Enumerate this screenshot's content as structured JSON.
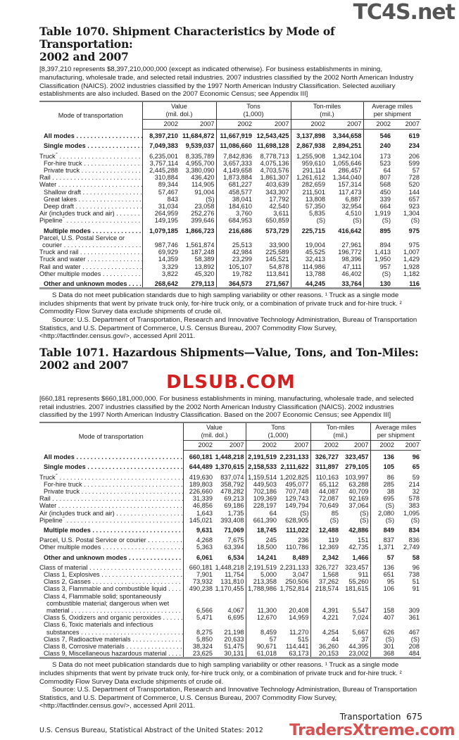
{
  "watermarks": {
    "top": "TC4S.net",
    "middle": "DLSUB.COM",
    "bottom": "TradersXtreme.com"
  },
  "table1070": {
    "title_line1": "Table 1070. Shipment Characteristics by Mode of Transportation:",
    "title_line2": "2002 and 2007",
    "intro": "[8,397,210 represents $8,397,210,000,000 (except as indicated otherwise). For business establishments in mining, manufacturing, wholesale trade, and selected retail industries. 2007 industries classified by the 2002 North American Industry Classification (NAICS). 2002 industries classified by the 1997 North American Industry Classification. Selected auxiliary establishments are also included. Based on the 2007 Economic Census; see Appendix III]",
    "stub_header": "Mode of transportation",
    "groups": [
      {
        "l1": "Value",
        "l2": "(mil. dol.)"
      },
      {
        "l1": "Tons",
        "l2": "(1,000)"
      },
      {
        "l1": "Ton-miles",
        "l2": "(mil.)"
      },
      {
        "l1": "Average miles",
        "l2": "per shipment"
      }
    ],
    "years": [
      "2002",
      "2007",
      "2002",
      "2007",
      "2002",
      "2007",
      "2002",
      "2007"
    ],
    "rows": [
      {
        "label": [
          "All modes"
        ],
        "indent": 1,
        "bold": true,
        "v": [
          "8,397,210",
          "11,684,872",
          "11,667,919",
          "12,543,425",
          "3,137,898",
          "3,344,658",
          "546",
          "619"
        ]
      },
      {
        "label": [
          "Single modes"
        ],
        "indent": 1,
        "bold": true,
        "v": [
          "7,049,383",
          "9,539,037",
          "11,086,660",
          "11,698,128",
          "2,867,938",
          "2,894,251",
          "240",
          "234"
        ]
      },
      {
        "label": [
          "Truck"
        ],
        "sup": "1",
        "indent": 0,
        "gap": true,
        "v": [
          "6,235,001",
          "8,335,789",
          "7,842,836",
          "8,778,713",
          "1,255,908",
          "1,342,104",
          "173",
          "206"
        ]
      },
      {
        "label": [
          "For-hire truck"
        ],
        "indent": 1,
        "v": [
          "3,757,114",
          "4,955,700",
          "3,657,333",
          "4,075,136",
          "959,610",
          "1,055,646",
          "523",
          "599"
        ]
      },
      {
        "label": [
          "Private truck"
        ],
        "indent": 1,
        "v": [
          "2,445,288",
          "3,380,090",
          "4,149,658",
          "4,703,576",
          "291,114",
          "286,457",
          "64",
          "57"
        ]
      },
      {
        "label": [
          "Rail"
        ],
        "indent": 0,
        "v": [
          "310,884",
          "436,420",
          "1,873,884",
          "1,861,307",
          "1,261,612",
          "1,344,040",
          "807",
          "728"
        ]
      },
      {
        "label": [
          "Water"
        ],
        "indent": 0,
        "v": [
          "89,344",
          "114,905",
          "681,227",
          "403,639",
          "282,659",
          "157,314",
          "568",
          "520"
        ]
      },
      {
        "label": [
          "Shallow draft"
        ],
        "indent": 1,
        "v": [
          "57,467",
          "91,004",
          "458,577",
          "343,307",
          "211,501",
          "117,473",
          "450",
          "144"
        ]
      },
      {
        "label": [
          "Great lakes"
        ],
        "indent": 1,
        "v": [
          "843",
          "(S)",
          "38,041",
          "17,792",
          "13,808",
          "6,887",
          "339",
          "657"
        ]
      },
      {
        "label": [
          "Deep draft"
        ],
        "indent": 1,
        "v": [
          "31,034",
          "23,058",
          "184,610",
          "42,540",
          "57,350",
          "32,954",
          "664",
          "923"
        ]
      },
      {
        "label": [
          "Air (includes truck and air)"
        ],
        "indent": 0,
        "v": [
          "264,959",
          "252,276",
          "3,760",
          "3,611",
          "5,835",
          "4,510",
          "1,919",
          "1,304"
        ]
      },
      {
        "label": [
          "Pipeline"
        ],
        "sup": "2",
        "indent": 0,
        "v": [
          "149,195",
          "399,646",
          "684,953",
          "650,859",
          "(S)",
          "(S)",
          "(S)",
          "(S)"
        ]
      },
      {
        "label": [
          "Multiple modes"
        ],
        "indent": 1,
        "bold": true,
        "v": [
          "1,079,185",
          "1,866,723",
          "216,686",
          "573,729",
          "225,715",
          "416,642",
          "895",
          "975"
        ]
      },
      {
        "label": [
          "Parcel, U.S. Postal Service or",
          "courier"
        ],
        "indent": 0,
        "gap": true,
        "v": [
          "987,746",
          "1,561,874",
          "25,513",
          "33,900",
          "19,004",
          "27,961",
          "894",
          "975"
        ]
      },
      {
        "label": [
          "Truck and rail"
        ],
        "indent": 0,
        "v": [
          "69,929",
          "187,248",
          "42,984",
          "225,589",
          "45,525",
          "196,772",
          "1,413",
          "1,007"
        ]
      },
      {
        "label": [
          "Truck and water"
        ],
        "indent": 0,
        "v": [
          "14,359",
          "58,389",
          "23,299",
          "145,521",
          "32,413",
          "98,396",
          "1,950",
          "1,429"
        ]
      },
      {
        "label": [
          "Rail and water"
        ],
        "indent": 0,
        "v": [
          "3,329",
          "13,892",
          "105,107",
          "54,878",
          "114,986",
          "47,111",
          "957",
          "1,928"
        ]
      },
      {
        "label": [
          "Other multiple modes"
        ],
        "indent": 0,
        "v": [
          "3,822",
          "45,320",
          "19,782",
          "113,841",
          "13,788",
          "46,402",
          "(S)",
          "1,182"
        ]
      },
      {
        "label": [
          "Other and unknown modes"
        ],
        "indent": 1,
        "bold": true,
        "v": [
          "268,642",
          "279,113",
          "364,573",
          "271,567",
          "44,245",
          "33,764",
          "130",
          "116"
        ]
      }
    ],
    "footnote": "S Data do not meet publication standards due to high sampling variability or other reasons. ¹ Truck as a single mode includes shipments that went by private truck only, for-hire truck only, or a combination of private truck and for-hire truck. ² Commodity Flow Survey data exclude shipments of crude oil.",
    "source": "Source: U.S. Department of Transportation, Research and Innovative Technology Administration, Bureau of Transportation Statistics, and U.S. Department of Commerce, U.S. Census Bureau, 2007 Commodity Flow Survey, <http://factfinder.census.gov/>, accessed April 2011."
  },
  "table1071": {
    "title": "Table 1071. Hazardous Shipments—Value, Tons, and Ton-Miles: 2002 and 2007",
    "intro": "[660,181 represents $660,181,000,000. For business establishments in mining, manufacturing, wholesale trade, and selected retail industries. 2007 industries classified by the 2002 North American Industry Classification (NAICS). 2002 industries classified by the 1997 North American Industry Classification. Based on the 2007 Economic Census; see Appendix III]",
    "stub_header": "Mode of transportation",
    "groups": [
      {
        "l1": "Value",
        "l2": "(mil. dol.)"
      },
      {
        "l1": "Tons",
        "l2": "(1,000)"
      },
      {
        "l1": "Ton-miles",
        "l2": "(mil.)"
      },
      {
        "l1": "Average miles",
        "l2": "per shipment"
      }
    ],
    "years": [
      "2002",
      "2007",
      "2002",
      "2007",
      "2002",
      "2007",
      "2002",
      "2007"
    ],
    "rows": [
      {
        "label": [
          "All modes"
        ],
        "indent": 1,
        "bold": true,
        "v": [
          "660,181",
          "1,448,218",
          "2,191,519",
          "2,231,133",
          "326,727",
          "323,457",
          "136",
          "96"
        ]
      },
      {
        "label": [
          "Single modes"
        ],
        "indent": 1,
        "bold": true,
        "v": [
          "644,489",
          "1,370,615",
          "2,158,533",
          "2,111,622",
          "311,897",
          "279,105",
          "105",
          "65"
        ]
      },
      {
        "label": [
          "Truck"
        ],
        "sup": "1",
        "indent": 0,
        "gap": true,
        "v": [
          "419,630",
          "837,074",
          "1,159,514",
          "1,202,825",
          "110,163",
          "103,997",
          "86",
          "59"
        ]
      },
      {
        "label": [
          "For-hire truck"
        ],
        "indent": 1,
        "v": [
          "189,803",
          "358,792",
          "449,503",
          "495,077",
          "65,112",
          "63,288",
          "285",
          "214"
        ]
      },
      {
        "label": [
          "Private truck"
        ],
        "indent": 1,
        "v": [
          "226,660",
          "478,282",
          "702,186",
          "707,748",
          "44,087",
          "40,709",
          "38",
          "32"
        ]
      },
      {
        "label": [
          "Rail"
        ],
        "indent": 0,
        "v": [
          "31,339",
          "69,213",
          "109,369",
          "129,743",
          "72,087",
          "92,169",
          "695",
          "578"
        ]
      },
      {
        "label": [
          "Water"
        ],
        "indent": 0,
        "v": [
          "46,856",
          "69,186",
          "228,197",
          "149,794",
          "70,649",
          "37,064",
          "(S)",
          "383"
        ]
      },
      {
        "label": [
          "Air (includes truck and air)"
        ],
        "indent": 0,
        "v": [
          "1,643",
          "1,735",
          "64",
          "(S)",
          "85",
          "(S)",
          "2,080",
          "1,095"
        ]
      },
      {
        "label": [
          "Pipeline"
        ],
        "sup": "2",
        "indent": 0,
        "v": [
          "145,021",
          "393,408",
          "661,390",
          "628,905",
          "(S)",
          "(S)",
          "(S)",
          "(S)"
        ]
      },
      {
        "label": [
          "Multiple modes"
        ],
        "indent": 1,
        "bold": true,
        "v": [
          "9,631",
          "71,069",
          "18,745",
          "111,022",
          "12,488",
          "42,886",
          "849",
          "834"
        ]
      },
      {
        "label": [
          "Parcel, U.S. Postal Service or courier"
        ],
        "indent": 0,
        "gap": true,
        "v": [
          "4,268",
          "7,675",
          "245",
          "236",
          "119",
          "151",
          "837",
          "836"
        ]
      },
      {
        "label": [
          "Other multiple modes"
        ],
        "indent": 0,
        "v": [
          "5,363",
          "63,394",
          "18,500",
          "110,786",
          "12,369",
          "42,735",
          "1,371",
          "2,749"
        ]
      },
      {
        "label": [
          "Other and unknown modes"
        ],
        "indent": 1,
        "bold": true,
        "v": [
          "6,061",
          "6,534",
          "14,241",
          "8,489",
          "2,342",
          "1,466",
          "57",
          "58"
        ]
      },
      {
        "label": [
          "Class of material"
        ],
        "indent": 0,
        "gap": true,
        "v": [
          "660,181",
          "1,448,218",
          "2,191,519",
          "2,231,133",
          "326,727",
          "323,457",
          "136",
          "96"
        ]
      },
      {
        "label": [
          "Class 1, Explosives"
        ],
        "indent": 1,
        "v": [
          "7,901",
          "11,754",
          "5,000",
          "3,047",
          "1,568",
          "911",
          "651",
          "738"
        ]
      },
      {
        "label": [
          "Class 2, Gasses"
        ],
        "indent": 1,
        "v": [
          "73,932",
          "131,810",
          "213,358",
          "250,506",
          "37,262",
          "55,260",
          "95",
          "51"
        ]
      },
      {
        "label": [
          "Class 3, Flammable and combustible liquid"
        ],
        "indent": 1,
        "v": [
          "490,238",
          "1,170,455",
          "1,788,986",
          "1,752,814",
          "218,574",
          "181,615",
          "106",
          "91"
        ]
      },
      {
        "label": [
          "Class 4, Flammable solid; spontaneously",
          "combustible material; dangerous when wet",
          "material"
        ],
        "indent": 1,
        "v": [
          "6,566",
          "4,067",
          "11,300",
          "20,408",
          "4,391",
          "5,547",
          "158",
          "309"
        ]
      },
      {
        "label": [
          "Class 5, Oxidizers and organic peroxides"
        ],
        "indent": 1,
        "v": [
          "5,471",
          "6,695",
          "12,670",
          "14,959",
          "4,221",
          "7,024",
          "407",
          "361"
        ]
      },
      {
        "label": [
          "Class 6, Toxic materials and infectious",
          "substances"
        ],
        "indent": 1,
        "v": [
          "8,275",
          "21,198",
          "8,459",
          "11,270",
          "4,254",
          "5,667",
          "626",
          "467"
        ]
      },
      {
        "label": [
          "Class 7, Radioactive materials"
        ],
        "indent": 1,
        "v": [
          "5,850",
          "20,633",
          "57",
          "515",
          "44",
          "37",
          "(S)",
          "(S)"
        ]
      },
      {
        "label": [
          "Class 8, Corrosive materials"
        ],
        "indent": 1,
        "v": [
          "38,324",
          "51,475",
          "90,671",
          "114,441",
          "36,260",
          "44,395",
          "301",
          "208"
        ]
      },
      {
        "label": [
          "Class 9, Miscellaneous hazardous material"
        ],
        "indent": 1,
        "v": [
          "23,625",
          "30,131",
          "61,018",
          "63,173",
          "20,153",
          "23,002",
          "368",
          "484"
        ]
      }
    ],
    "footnote": "S Data do not meet publication standards due to high sampling variability or other reasons. ¹ Truck as a single mode includes shipments that went by private truck only, for-hire truck only, or a combination of private truck and for-hire truck. ² Commodity Flow Survey Data exclude shipments of crude oil.",
    "source": "Source: U.S. Department of Transportation, Research and Innovative Technology Administration, Bureau of Transportation Statistics, and U.S. Department of Commerce, U.S. Census Bureau, 2007 Commodity Flow Survey, <http://factfinder.census.gov/>, accessed April 2011."
  },
  "footer": {
    "section": "Transportation",
    "page": "675",
    "publisher": "U.S. Census Bureau, Statistical Abstract of the United States: 2012"
  }
}
